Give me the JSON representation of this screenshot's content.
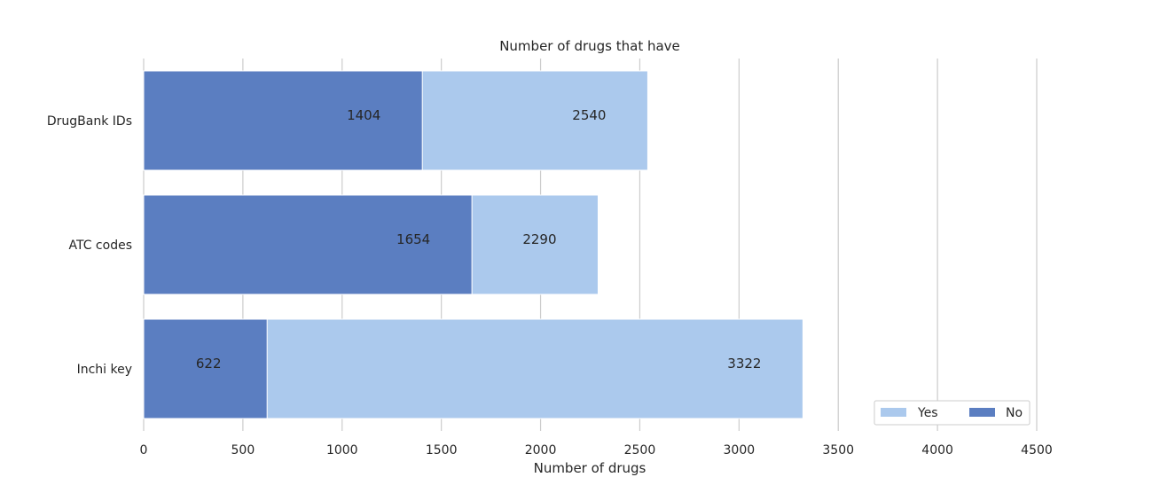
{
  "chart_data": {
    "type": "bar",
    "orientation": "horizontal",
    "stacked": true,
    "title": "Number of drugs that have",
    "xlabel": "Number of drugs",
    "ylabel": "",
    "categories": [
      "DrugBank IDs",
      "ATC codes",
      "Inchi key"
    ],
    "series": [
      {
        "name": "Yes",
        "values": [
          2540,
          2290,
          3322
        ],
        "color": "#abc9ed"
      },
      {
        "name": "No",
        "values": [
          1404,
          1654,
          622
        ],
        "color": "#5b7ec1"
      }
    ],
    "xlim": [
      0,
      4500
    ],
    "xticks": [
      0,
      500,
      1000,
      1500,
      2000,
      2500,
      3000,
      3500,
      4000,
      4500
    ],
    "grid": true,
    "legend_position": "bottom-right"
  }
}
